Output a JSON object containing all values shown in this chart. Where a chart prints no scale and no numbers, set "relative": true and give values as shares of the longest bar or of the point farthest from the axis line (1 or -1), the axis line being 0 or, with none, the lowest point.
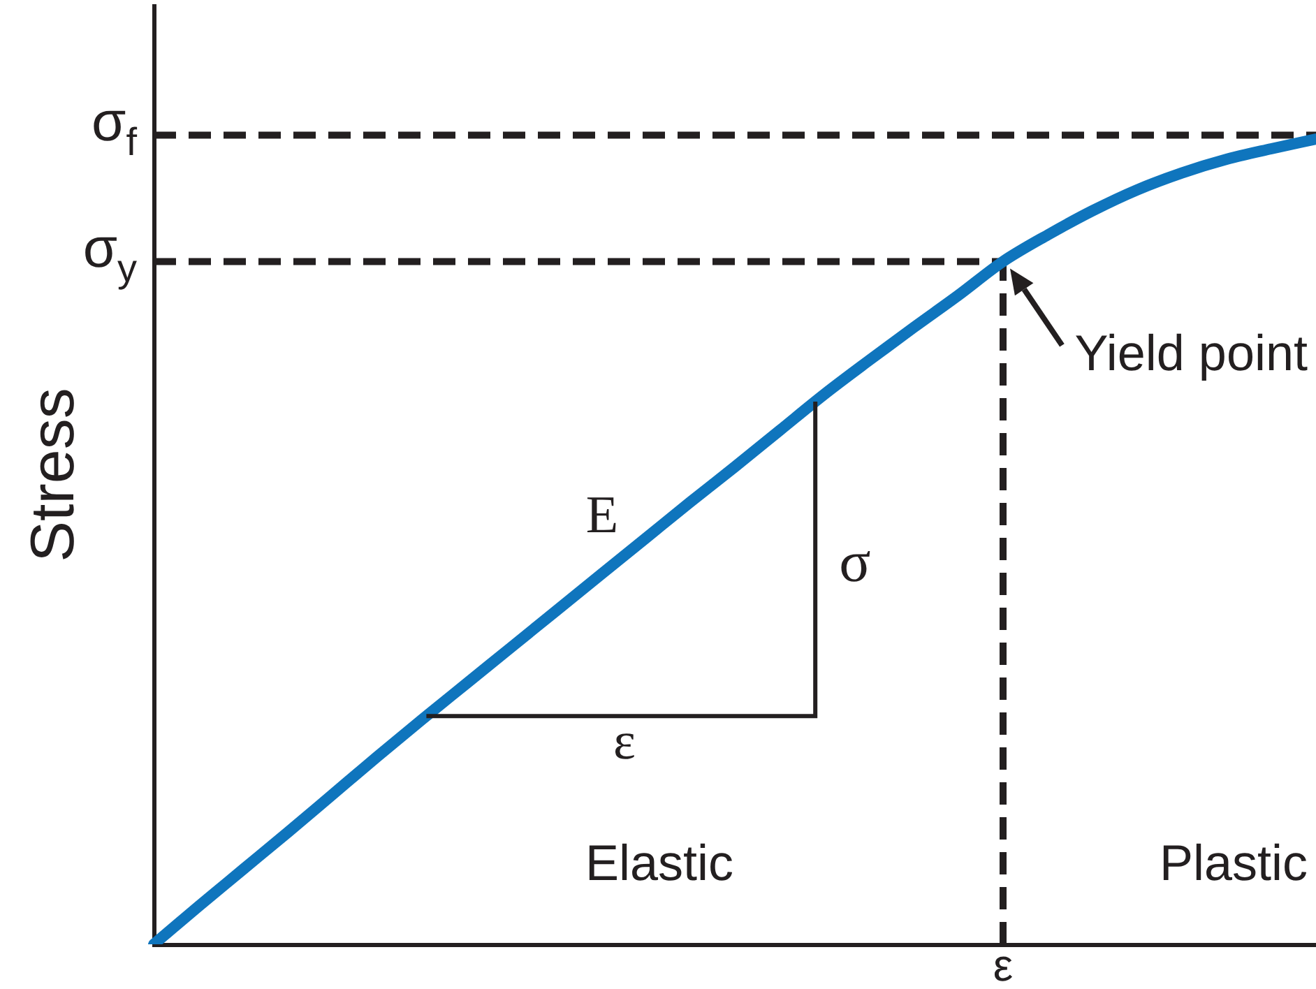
{
  "chart_data": {
    "type": "line",
    "ylabel": "Stress",
    "relative": true,
    "marker": "none",
    "categories": [
      null,
      null,
      null,
      null,
      null,
      null,
      null,
      null,
      null,
      null,
      null,
      null,
      null,
      null,
      null,
      null,
      null,
      null,
      null,
      null,
      null,
      null,
      null,
      null,
      null,
      null,
      null
    ],
    "series": [
      {
        "color": "#0f75bd",
        "values": [
          0,
          0.047,
          0.093,
          0.139,
          0.186,
          0.233,
          0.279,
          0.324,
          0.369,
          0.414,
          0.459,
          0.504,
          0.549,
          0.593,
          0.638,
          0.683,
          0.725,
          0.766,
          0.806,
          0.848,
          0.881,
          0.911,
          0.937,
          0.958,
          0.975,
          0.988,
          1
        ]
      }
    ],
    "ref_lines": [
      {
        "axis": "y",
        "value": 1.005,
        "label": "σ$_{f}$",
        "color": "#231f20",
        "line_style": "dashed"
      },
      {
        "axis": "y",
        "value": 0.848,
        "label": "σ$_{y}$",
        "color": "#231f20",
        "line_style": "dashed"
      }
    ],
    "annotations": [
      "E",
      "σ",
      "ε",
      "Elastic",
      "Plastic",
      "Yield point",
      "ε"
    ]
  }
}
